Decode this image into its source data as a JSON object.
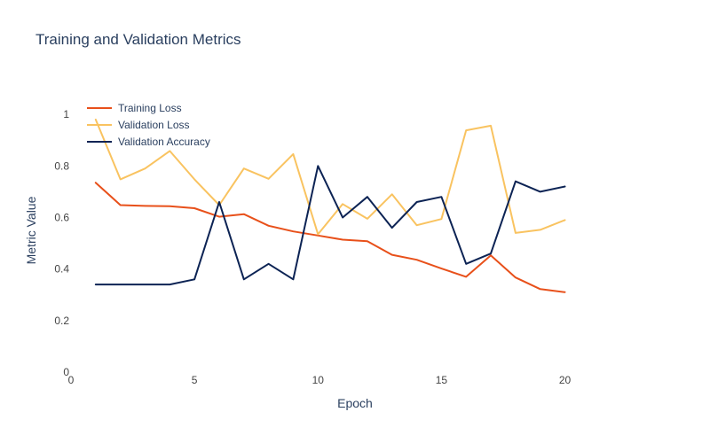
{
  "chart_data": {
    "type": "line",
    "title": "Training and Validation Metrics",
    "xlabel": "Epoch",
    "ylabel": "Metric Value",
    "xlim": [
      0,
      23
    ],
    "ylim": [
      0,
      1.1
    ],
    "x_ticks": [
      0,
      5,
      10,
      15,
      20
    ],
    "y_ticks": [
      0,
      0.2,
      0.4,
      0.6,
      0.8,
      1
    ],
    "x_tick_labels": [
      "0",
      "5",
      "10",
      "15",
      "20"
    ],
    "y_tick_labels": [
      "0",
      "0.2",
      "0.4",
      "0.6",
      "0.8",
      "1"
    ],
    "grid": false,
    "legend_position": "top-left",
    "x": [
      1,
      2,
      3,
      4,
      5,
      6,
      7,
      8,
      9,
      10,
      11,
      12,
      13,
      14,
      15,
      16,
      17,
      18,
      19,
      20
    ],
    "series": [
      {
        "name": "Training Loss",
        "color": "#e8501a",
        "values": [
          0.735,
          0.648,
          0.645,
          0.644,
          0.636,
          0.603,
          0.613,
          0.568,
          0.546,
          0.53,
          0.514,
          0.508,
          0.455,
          0.436,
          0.402,
          0.37,
          0.453,
          0.367,
          0.322,
          0.31
        ]
      },
      {
        "name": "Validation Loss",
        "color": "#f9c360",
        "values": [
          0.98,
          0.748,
          0.79,
          0.858,
          0.748,
          0.648,
          0.79,
          0.75,
          0.846,
          0.535,
          0.652,
          0.595,
          0.69,
          0.57,
          0.594,
          0.938,
          0.956,
          0.54,
          0.552,
          0.59
        ]
      },
      {
        "name": "Validation Accuracy",
        "color": "#0c2354",
        "values": [
          0.34,
          0.34,
          0.34,
          0.34,
          0.36,
          0.66,
          0.36,
          0.42,
          0.36,
          0.8,
          0.6,
          0.68,
          0.56,
          0.66,
          0.68,
          0.42,
          0.46,
          0.74,
          0.7,
          0.72
        ]
      }
    ]
  }
}
